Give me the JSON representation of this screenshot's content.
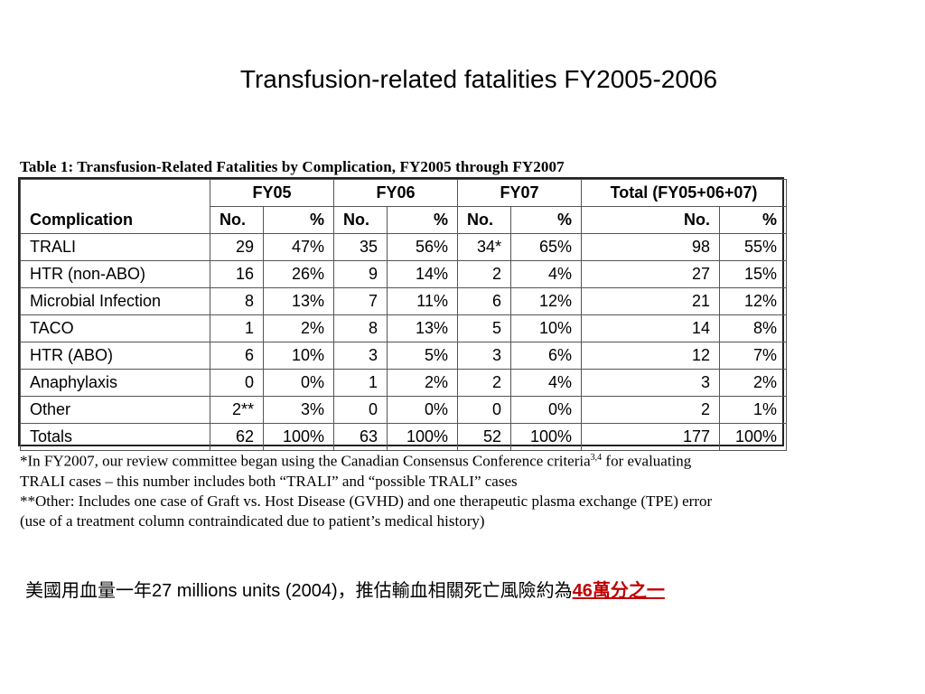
{
  "slide": {
    "title": "Transfusion-related fatalities FY2005-2006"
  },
  "table": {
    "caption": "Table 1:  Transfusion-Related Fatalities by Complication, FY2005 through FY2007",
    "group_headers": [
      "FY05",
      "FY06",
      "FY07",
      "Total (FY05+06+07)"
    ],
    "complication_header": "Complication",
    "sub_headers": [
      "No.",
      "%",
      "No.",
      "%",
      "No.",
      "%",
      "No.",
      "%"
    ],
    "rows": [
      {
        "label": "TRALI",
        "cells": [
          "29",
          "47%",
          "35",
          "56%",
          "34*",
          "65%",
          "98",
          "55%"
        ]
      },
      {
        "label": "HTR (non-ABO)",
        "cells": [
          "16",
          "26%",
          "9",
          "14%",
          "2",
          "4%",
          "27",
          "15%"
        ]
      },
      {
        "label": "Microbial Infection",
        "cells": [
          "8",
          "13%",
          "7",
          "11%",
          "6",
          "12%",
          "21",
          "12%"
        ]
      },
      {
        "label": "TACO",
        "cells": [
          "1",
          "2%",
          "8",
          "13%",
          "5",
          "10%",
          "14",
          "8%"
        ]
      },
      {
        "label": "HTR (ABO)",
        "cells": [
          "6",
          "10%",
          "3",
          "5%",
          "3",
          "6%",
          "12",
          "7%"
        ]
      },
      {
        "label": "Anaphylaxis",
        "cells": [
          "0",
          "0%",
          "1",
          "2%",
          "2",
          "4%",
          "3",
          "2%"
        ]
      },
      {
        "label": "Other",
        "cells": [
          "2**",
          "3%",
          "0",
          "0%",
          "0",
          "0%",
          "2",
          "1%"
        ]
      },
      {
        "label": "Totals",
        "cells": [
          "62",
          "100%",
          "63",
          "100%",
          "52",
          "100%",
          "177",
          "100%"
        ]
      }
    ]
  },
  "footnotes": {
    "line1_pre": "*In FY2007, our review committee began using the Canadian Consensus Conference criteria",
    "line1_sup": "3,4",
    "line1_post": " for evaluating",
    "line2": "TRALI cases – this number includes both “TRALI” and “possible TRALI” cases",
    "line3": "**Other: Includes one case of Graft vs. Host Disease (GVHD) and one therapeutic plasma exchange (TPE) error",
    "line4": "(use of a treatment column contraindicated due to patient’s medical history)"
  },
  "summary": {
    "text": "美國用血量一年27 millions units  (2004)，推估輸血相關死亡風險約為",
    "highlight": "46萬分之一 "
  },
  "colors": {
    "highlight": "#c00000",
    "border": "#555555"
  }
}
